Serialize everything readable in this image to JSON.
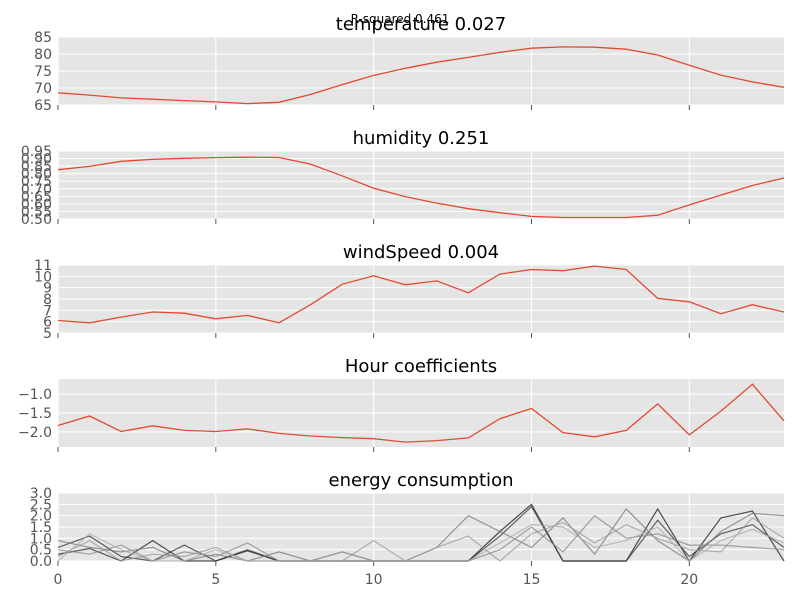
{
  "figure": {
    "suptitle": "R-squared 0.461"
  },
  "chart_data": [
    {
      "type": "line",
      "title": "temperature 0.027",
      "x": [
        0,
        1,
        2,
        3,
        4,
        5,
        6,
        7,
        8,
        9,
        10,
        11,
        12,
        13,
        14,
        15,
        16,
        17,
        18,
        19,
        20,
        21,
        22,
        23
      ],
      "series": [
        {
          "values": [
            68.6,
            67.9,
            67.1,
            66.7,
            66.3,
            65.9,
            65.4,
            65.8,
            68.1,
            71.0,
            73.7,
            75.8,
            77.6,
            79.0,
            80.5,
            81.7,
            82.1,
            82.0,
            81.4,
            79.7,
            76.7,
            73.8,
            71.8,
            70.2
          ],
          "color": "#e24a33"
        }
      ],
      "xlim": [
        0,
        23
      ],
      "ylim": [
        65,
        85
      ],
      "yticks": [
        65,
        70,
        75,
        80,
        85
      ],
      "ytick_labels": [
        "65",
        "70",
        "75",
        "80",
        "85"
      ],
      "xticks": [
        0,
        5,
        10,
        15,
        20
      ],
      "grid": true
    },
    {
      "type": "line",
      "title": "humidity 0.251",
      "x": [
        0,
        1,
        2,
        3,
        4,
        5,
        6,
        7,
        8,
        9,
        10,
        11,
        12,
        13,
        14,
        15,
        16,
        17,
        18,
        19,
        20,
        21,
        22,
        23
      ],
      "series": [
        {
          "values": [
            0.826,
            0.848,
            0.882,
            0.895,
            0.902,
            0.906,
            0.909,
            0.907,
            0.863,
            0.786,
            0.704,
            0.648,
            0.605,
            0.568,
            0.542,
            0.517,
            0.51,
            0.51,
            0.51,
            0.525,
            0.593,
            0.658,
            0.722,
            0.771
          ],
          "color": "#e24a33"
        }
      ],
      "xlim": [
        0,
        23
      ],
      "ylim": [
        0.5,
        0.95
      ],
      "yticks": [
        0.5,
        0.55,
        0.6,
        0.65,
        0.7,
        0.75,
        0.8,
        0.85,
        0.9,
        0.95
      ],
      "ytick_labels": [
        "0.50",
        "0.55",
        "0.60",
        "0.65",
        "0.70",
        "0.75",
        "0.80",
        "0.85",
        "0.90",
        "0.95"
      ],
      "xticks": [
        0,
        5,
        10,
        15,
        20
      ],
      "grid": true
    },
    {
      "type": "line",
      "title": "windSpeed 0.004",
      "x": [
        0,
        1,
        2,
        3,
        4,
        5,
        6,
        7,
        8,
        9,
        10,
        11,
        12,
        13,
        14,
        15,
        16,
        17,
        18,
        19,
        20,
        21,
        22,
        23
      ],
      "series": [
        {
          "values": [
            6.1,
            5.9,
            6.4,
            6.85,
            6.75,
            6.25,
            6.55,
            5.9,
            7.5,
            9.3,
            10.05,
            9.25,
            9.6,
            8.55,
            10.2,
            10.6,
            10.5,
            10.9,
            10.6,
            8.05,
            7.75,
            6.7,
            7.5,
            6.85
          ],
          "color": "#e24a33"
        }
      ],
      "xlim": [
        0,
        23
      ],
      "ylim": [
        5,
        11
      ],
      "yticks": [
        5,
        6,
        7,
        8,
        9,
        10,
        11
      ],
      "ytick_labels": [
        "5",
        "6",
        "7",
        "8",
        "9",
        "10",
        "11"
      ],
      "xticks": [
        0,
        5,
        10,
        15,
        20
      ],
      "grid": true
    },
    {
      "type": "line",
      "title": "Hour coefficients",
      "x": [
        0,
        1,
        2,
        3,
        4,
        5,
        6,
        7,
        8,
        9,
        10,
        11,
        12,
        13,
        14,
        15,
        16,
        17,
        18,
        19,
        20,
        21,
        22,
        23
      ],
      "series": [
        {
          "values": [
            -1.83,
            -1.58,
            -1.99,
            -1.84,
            -1.96,
            -1.99,
            -1.92,
            -2.04,
            -2.11,
            -2.15,
            -2.18,
            -2.27,
            -2.23,
            -2.16,
            -1.65,
            -1.38,
            -2.02,
            -2.13,
            -1.96,
            -1.26,
            -2.08,
            -1.45,
            -0.74,
            -1.71
          ],
          "color": "#e24a33"
        }
      ],
      "xlim": [
        0,
        23
      ],
      "ylim": [
        -2.4,
        -0.6
      ],
      "yticks": [
        -2.0,
        -1.5,
        -1.0
      ],
      "ytick_labels": [
        "−2.0",
        "−1.5",
        "−1.0"
      ],
      "xticks": [
        0,
        5,
        10,
        15,
        20
      ],
      "grid": true
    },
    {
      "type": "line",
      "title": "energy consumption",
      "x": [
        0,
        1,
        2,
        3,
        4,
        5,
        6,
        7,
        8,
        9,
        10,
        11,
        12,
        13,
        14,
        15,
        16,
        17,
        18,
        19,
        20,
        21,
        22,
        23
      ],
      "series": [
        {
          "values": [
            0.3,
            0.55,
            0.0,
            0.9,
            0.0,
            0.0,
            0.45,
            0.0,
            0.0,
            0.0,
            0.0,
            0.0,
            0.0,
            0.0,
            1.3,
            2.5,
            0.0,
            0.0,
            0.0,
            2.3,
            0.0,
            1.9,
            2.2,
            0.0
          ],
          "color": "#1a1a1a"
        },
        {
          "values": [
            0.6,
            1.1,
            0.2,
            0.0,
            0.7,
            0.0,
            0.5,
            0.0,
            0.0,
            0.0,
            0.0,
            0.0,
            0.0,
            0.0,
            1.1,
            2.4,
            0.0,
            0.0,
            0.0,
            1.8,
            0.2,
            1.2,
            1.6,
            0.6
          ],
          "color": "#333333"
        },
        {
          "values": [
            0.9,
            0.6,
            0.4,
            0.6,
            0.0,
            0.3,
            0.0,
            0.4,
            0.0,
            0.4,
            0.0,
            0.0,
            0.6,
            2.0,
            1.3,
            0.6,
            1.9,
            0.3,
            2.3,
            0.9,
            0.0,
            1.3,
            2.1,
            2.0
          ],
          "color": "#777777"
        },
        {
          "values": [
            0.2,
            0.9,
            0.0,
            0.3,
            0.2,
            0.6,
            0.0,
            0.0,
            0.0,
            0.0,
            0.9,
            0.0,
            0.6,
            1.1,
            0.0,
            1.2,
            1.7,
            0.8,
            1.6,
            1.0,
            0.5,
            0.4,
            1.9,
            1.0
          ],
          "color": "#999999"
        },
        {
          "values": [
            0.5,
            0.3,
            0.7,
            0.0,
            0.4,
            0.2,
            0.8,
            0.0,
            0.0,
            0.0,
            0.0,
            0.0,
            0.0,
            0.0,
            0.5,
            1.5,
            0.4,
            2.0,
            1.0,
            1.2,
            0.7,
            0.7,
            0.6,
            0.5
          ],
          "color": "#888888"
        },
        {
          "values": [
            0.0,
            1.2,
            0.5,
            0.0,
            0.0,
            0.5,
            0.0,
            0.0,
            0.0,
            0.0,
            0.0,
            0.0,
            0.0,
            0.0,
            0.8,
            1.6,
            1.5,
            0.6,
            0.9,
            1.5,
            0.0,
            0.9,
            1.4,
            0.8
          ],
          "color": "#aaaaaa"
        }
      ],
      "xlim": [
        0,
        23
      ],
      "ylim": [
        0,
        3
      ],
      "yticks": [
        0,
        0.5,
        1.0,
        1.5,
        2.0,
        2.5,
        3.0
      ],
      "ytick_labels": [
        "0.0",
        "0.5",
        "1.0",
        "1.5",
        "2.0",
        "2.5",
        "3.0"
      ],
      "xticks": [
        0,
        5,
        10,
        15,
        20
      ],
      "xtick_labels": [
        "0",
        "5",
        "10",
        "15",
        "20"
      ],
      "grid": true
    }
  ]
}
